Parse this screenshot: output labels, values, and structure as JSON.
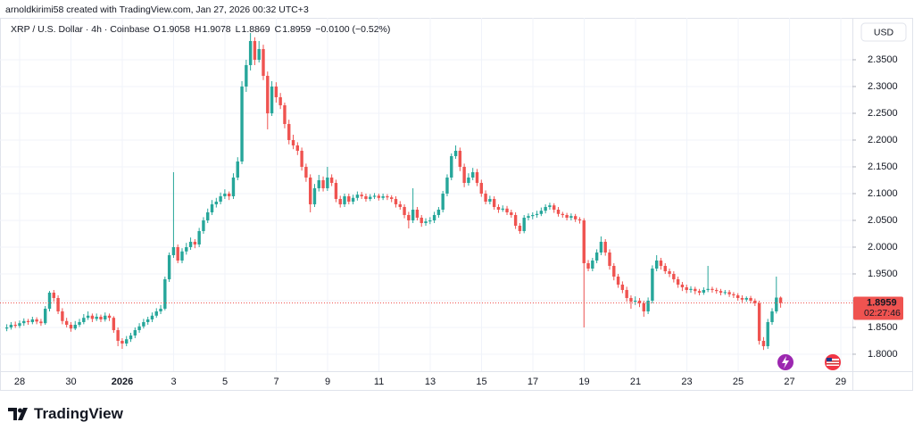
{
  "chart_data": {
    "type": "candlestick",
    "header": "arnoldkirimi58 created with TradingView.com, Jan 27, 2026 00:32 UTC+3",
    "title": "XRP / U.S. Dollar · 4h · Coinbase",
    "legend": {
      "open_label": "O",
      "open": "1.9058",
      "high_label": "H",
      "high": "1.9078",
      "low_label": "L",
      "low": "1.8869",
      "close_label": "C",
      "close": "1.8959",
      "change": "−0.0100 (−0.52%)"
    },
    "currency": "USD",
    "up_color": "#26a69a",
    "down_color": "#ef5350",
    "grid": true,
    "ylim": [
      1.7333,
      2.4283
    ],
    "yticks": [
      {
        "value": 1.8,
        "label": "1.8000"
      },
      {
        "value": 1.85,
        "label": "1.8500"
      },
      {
        "value": 1.9,
        "label": "1.9000"
      },
      {
        "value": 1.95,
        "label": "1.9500"
      },
      {
        "value": 2.0,
        "label": "2.0000"
      },
      {
        "value": 2.05,
        "label": "2.0500"
      },
      {
        "value": 2.1,
        "label": "2.1000"
      },
      {
        "value": 2.15,
        "label": "2.1500"
      },
      {
        "value": 2.2,
        "label": "2.2000"
      },
      {
        "value": 2.25,
        "label": "2.2500"
      },
      {
        "value": 2.3,
        "label": "2.3000"
      },
      {
        "value": 2.35,
        "label": "2.3500"
      }
    ],
    "xlim": [
      0.235,
      33.45
    ],
    "xticks": [
      {
        "value": 1,
        "label": "28"
      },
      {
        "value": 3,
        "label": "30"
      },
      {
        "value": 5,
        "label": "2026"
      },
      {
        "value": 7,
        "label": "3"
      },
      {
        "value": 9,
        "label": "5"
      },
      {
        "value": 11,
        "label": "7"
      },
      {
        "value": 13,
        "label": "9"
      },
      {
        "value": 15,
        "label": "11"
      },
      {
        "value": 17,
        "label": "13"
      },
      {
        "value": 19,
        "label": "15"
      },
      {
        "value": 21,
        "label": "17"
      },
      {
        "value": 23,
        "label": "19"
      },
      {
        "value": 25,
        "label": "21"
      },
      {
        "value": 27,
        "label": "23"
      },
      {
        "value": 29,
        "label": "25"
      },
      {
        "value": 31,
        "label": "27"
      },
      {
        "value": 33,
        "label": "29"
      }
    ],
    "last_price": {
      "value": 1.8959,
      "label": "1.8959"
    },
    "countdown": "02:27:46",
    "brand": "TradingView",
    "candles": [
      [
        1.848,
        1.856,
        1.843,
        1.85
      ],
      [
        1.85,
        1.86,
        1.846,
        1.855
      ],
      [
        1.855,
        1.861,
        1.849,
        1.853
      ],
      [
        1.853,
        1.863,
        1.849,
        1.858
      ],
      [
        1.858,
        1.867,
        1.853,
        1.862
      ],
      [
        1.862,
        1.866,
        1.855,
        1.86
      ],
      [
        1.86,
        1.87,
        1.856,
        1.865
      ],
      [
        1.865,
        1.869,
        1.856,
        1.861
      ],
      [
        1.861,
        1.866,
        1.853,
        1.858
      ],
      [
        1.858,
        1.89,
        1.855,
        1.885
      ],
      [
        1.885,
        1.918,
        1.88,
        1.915
      ],
      [
        1.915,
        1.92,
        1.898,
        1.905
      ],
      [
        1.905,
        1.91,
        1.875,
        1.88
      ],
      [
        1.88,
        1.886,
        1.856,
        1.862
      ],
      [
        1.862,
        1.868,
        1.85,
        1.855
      ],
      [
        1.855,
        1.86,
        1.842,
        1.848
      ],
      [
        1.848,
        1.862,
        1.845,
        1.855
      ],
      [
        1.855,
        1.866,
        1.851,
        1.86
      ],
      [
        1.86,
        1.875,
        1.856,
        1.868
      ],
      [
        1.868,
        1.88,
        1.864,
        1.872
      ],
      [
        1.872,
        1.876,
        1.86,
        1.866
      ],
      [
        1.866,
        1.876,
        1.862,
        1.87
      ],
      [
        1.87,
        1.874,
        1.86,
        1.865
      ],
      [
        1.865,
        1.878,
        1.861,
        1.872
      ],
      [
        1.872,
        1.876,
        1.862,
        1.868
      ],
      [
        1.868,
        1.871,
        1.84,
        1.845
      ],
      [
        1.845,
        1.85,
        1.815,
        1.825
      ],
      [
        1.825,
        1.83,
        1.81,
        1.82
      ],
      [
        1.82,
        1.834,
        1.815,
        1.828
      ],
      [
        1.828,
        1.84,
        1.823,
        1.835
      ],
      [
        1.835,
        1.85,
        1.83,
        1.845
      ],
      [
        1.845,
        1.858,
        1.84,
        1.852
      ],
      [
        1.852,
        1.866,
        1.848,
        1.86
      ],
      [
        1.86,
        1.87,
        1.855,
        1.865
      ],
      [
        1.865,
        1.878,
        1.86,
        1.872
      ],
      [
        1.872,
        1.886,
        1.868,
        1.88
      ],
      [
        1.88,
        1.892,
        1.875,
        1.885
      ],
      [
        1.885,
        1.945,
        1.882,
        1.94
      ],
      [
        1.94,
        1.99,
        1.935,
        1.985
      ],
      [
        1.985,
        2.14,
        1.98,
        2.0
      ],
      [
        2.0,
        2.005,
        1.97,
        1.975
      ],
      [
        1.975,
        1.998,
        1.97,
        1.992
      ],
      [
        1.992,
        2.008,
        1.986,
        2.0
      ],
      [
        2.0,
        2.018,
        1.995,
        2.01
      ],
      [
        2.01,
        2.015,
        1.998,
        2.005
      ],
      [
        2.005,
        2.036,
        2.0,
        2.03
      ],
      [
        2.03,
        2.056,
        2.025,
        2.05
      ],
      [
        2.05,
        2.072,
        2.045,
        2.065
      ],
      [
        2.065,
        2.088,
        2.06,
        2.08
      ],
      [
        2.08,
        2.092,
        2.074,
        2.085
      ],
      [
        2.085,
        2.102,
        2.08,
        2.095
      ],
      [
        2.095,
        2.108,
        2.09,
        2.1
      ],
      [
        2.1,
        2.104,
        2.088,
        2.095
      ],
      [
        2.095,
        2.138,
        2.09,
        2.13
      ],
      [
        2.13,
        2.168,
        2.125,
        2.16
      ],
      [
        2.16,
        2.31,
        2.155,
        2.3
      ],
      [
        2.3,
        2.35,
        2.29,
        2.34
      ],
      [
        2.34,
        2.4,
        2.33,
        2.385
      ],
      [
        2.385,
        2.392,
        2.34,
        2.35
      ],
      [
        2.35,
        2.385,
        2.345,
        2.37
      ],
      [
        2.37,
        2.378,
        2.312,
        2.32
      ],
      [
        2.32,
        2.328,
        2.22,
        2.25
      ],
      [
        2.25,
        2.31,
        2.245,
        2.3
      ],
      [
        2.3,
        2.308,
        2.27,
        2.28
      ],
      [
        2.28,
        2.288,
        2.258,
        2.265
      ],
      [
        2.265,
        2.27,
        2.222,
        2.23
      ],
      [
        2.23,
        2.238,
        2.192,
        2.2
      ],
      [
        2.2,
        2.21,
        2.183,
        2.19
      ],
      [
        2.19,
        2.196,
        2.172,
        2.18
      ],
      [
        2.18,
        2.186,
        2.143,
        2.15
      ],
      [
        2.15,
        2.156,
        2.122,
        2.13
      ],
      [
        2.13,
        2.136,
        2.065,
        2.08
      ],
      [
        2.08,
        2.118,
        2.075,
        2.11
      ],
      [
        2.11,
        2.135,
        2.104,
        2.125
      ],
      [
        2.125,
        2.132,
        2.104,
        2.11
      ],
      [
        2.11,
        2.15,
        2.105,
        2.13
      ],
      [
        2.13,
        2.136,
        2.114,
        2.12
      ],
      [
        2.12,
        2.126,
        2.084,
        2.09
      ],
      [
        2.09,
        2.096,
        2.074,
        2.08
      ],
      [
        2.08,
        2.1,
        2.075,
        2.095
      ],
      [
        2.095,
        2.1,
        2.08,
        2.085
      ],
      [
        2.085,
        2.098,
        2.08,
        2.092
      ],
      [
        2.092,
        2.104,
        2.087,
        2.098
      ],
      [
        2.098,
        2.103,
        2.09,
        2.095
      ],
      [
        2.095,
        2.1,
        2.085,
        2.09
      ],
      [
        2.09,
        2.099,
        2.086,
        2.094
      ],
      [
        2.094,
        2.101,
        2.09,
        2.096
      ],
      [
        2.096,
        2.1,
        2.087,
        2.092
      ],
      [
        2.092,
        2.1,
        2.088,
        2.095
      ],
      [
        2.095,
        2.099,
        2.088,
        2.093
      ],
      [
        2.093,
        2.097,
        2.084,
        2.09
      ],
      [
        2.09,
        2.095,
        2.074,
        2.08
      ],
      [
        2.08,
        2.086,
        2.07,
        2.075
      ],
      [
        2.075,
        2.08,
        2.054,
        2.06
      ],
      [
        2.06,
        2.066,
        2.035,
        2.05
      ],
      [
        2.05,
        2.11,
        2.045,
        2.07
      ],
      [
        2.07,
        2.075,
        2.05,
        2.055
      ],
      [
        2.055,
        2.06,
        2.038,
        2.045
      ],
      [
        2.045,
        2.054,
        2.04,
        2.048
      ],
      [
        2.048,
        2.056,
        2.043,
        2.05
      ],
      [
        2.05,
        2.066,
        2.045,
        2.06
      ],
      [
        2.06,
        2.075,
        2.055,
        2.07
      ],
      [
        2.07,
        2.105,
        2.065,
        2.1
      ],
      [
        2.1,
        2.136,
        2.095,
        2.13
      ],
      [
        2.13,
        2.175,
        2.125,
        2.17
      ],
      [
        2.17,
        2.19,
        2.165,
        2.18
      ],
      [
        2.18,
        2.186,
        2.142,
        2.15
      ],
      [
        2.15,
        2.156,
        2.112,
        2.12
      ],
      [
        2.12,
        2.138,
        2.115,
        2.13
      ],
      [
        2.13,
        2.148,
        2.125,
        2.14
      ],
      [
        2.14,
        2.146,
        2.114,
        2.12
      ],
      [
        2.12,
        2.126,
        2.094,
        2.1
      ],
      [
        2.1,
        2.106,
        2.08,
        2.085
      ],
      [
        2.085,
        2.096,
        2.08,
        2.09
      ],
      [
        2.09,
        2.095,
        2.07,
        2.075
      ],
      [
        2.075,
        2.08,
        2.064,
        2.07
      ],
      [
        2.07,
        2.078,
        2.066,
        2.072
      ],
      [
        2.072,
        2.077,
        2.06,
        2.065
      ],
      [
        2.065,
        2.07,
        2.055,
        2.06
      ],
      [
        2.06,
        2.065,
        2.034,
        2.04
      ],
      [
        2.04,
        2.045,
        2.025,
        2.03
      ],
      [
        2.03,
        2.06,
        2.026,
        2.055
      ],
      [
        2.055,
        2.063,
        2.05,
        2.058
      ],
      [
        2.058,
        2.065,
        2.052,
        2.06
      ],
      [
        2.06,
        2.068,
        2.055,
        2.062
      ],
      [
        2.062,
        2.074,
        2.058,
        2.068
      ],
      [
        2.068,
        2.08,
        2.063,
        2.075
      ],
      [
        2.075,
        2.083,
        2.07,
        2.078
      ],
      [
        2.078,
        2.082,
        2.064,
        2.07
      ],
      [
        2.07,
        2.075,
        2.057,
        2.062
      ],
      [
        2.062,
        2.066,
        2.055,
        2.06
      ],
      [
        2.06,
        2.064,
        2.05,
        2.055
      ],
      [
        2.055,
        2.063,
        2.05,
        2.058
      ],
      [
        2.058,
        2.062,
        2.047,
        2.052
      ],
      [
        2.052,
        2.056,
        2.044,
        2.05
      ],
      [
        2.05,
        2.054,
        1.85,
        1.97
      ],
      [
        1.97,
        1.976,
        1.955,
        1.96
      ],
      [
        1.96,
        1.98,
        1.955,
        1.975
      ],
      [
        1.975,
        1.996,
        1.97,
        1.99
      ],
      [
        1.99,
        2.02,
        1.985,
        2.01
      ],
      [
        2.01,
        2.015,
        1.984,
        1.99
      ],
      [
        1.99,
        1.996,
        1.958,
        1.965
      ],
      [
        1.965,
        1.97,
        1.938,
        1.945
      ],
      [
        1.945,
        1.95,
        1.924,
        1.93
      ],
      [
        1.93,
        1.936,
        1.914,
        1.92
      ],
      [
        1.92,
        1.926,
        1.898,
        1.905
      ],
      [
        1.905,
        1.91,
        1.885,
        1.898
      ],
      [
        1.898,
        1.908,
        1.892,
        1.9
      ],
      [
        1.9,
        1.905,
        1.888,
        1.895
      ],
      [
        1.895,
        1.9,
        1.87,
        1.88
      ],
      [
        1.88,
        1.906,
        1.875,
        1.9
      ],
      [
        1.9,
        1.966,
        1.895,
        1.96
      ],
      [
        1.96,
        1.985,
        1.955,
        1.975
      ],
      [
        1.975,
        1.98,
        1.958,
        1.965
      ],
      [
        1.965,
        1.97,
        1.95,
        1.955
      ],
      [
        1.955,
        1.96,
        1.944,
        1.95
      ],
      [
        1.95,
        1.955,
        1.934,
        1.94
      ],
      [
        1.94,
        1.945,
        1.924,
        1.93
      ],
      [
        1.93,
        1.935,
        1.918,
        1.925
      ],
      [
        1.925,
        1.93,
        1.914,
        1.92
      ],
      [
        1.92,
        1.927,
        1.915,
        1.922
      ],
      [
        1.922,
        1.926,
        1.912,
        1.918
      ],
      [
        1.918,
        1.922,
        1.91,
        1.915
      ],
      [
        1.915,
        1.925,
        1.911,
        1.92
      ],
      [
        1.92,
        1.965,
        1.916,
        1.922
      ],
      [
        1.922,
        1.926,
        1.915,
        1.92
      ],
      [
        1.92,
        1.924,
        1.913,
        1.918
      ],
      [
        1.918,
        1.922,
        1.91,
        1.915
      ],
      [
        1.915,
        1.92,
        1.911,
        1.916
      ],
      [
        1.916,
        1.92,
        1.907,
        1.912
      ],
      [
        1.912,
        1.916,
        1.905,
        1.91
      ],
      [
        1.91,
        1.914,
        1.9,
        1.905
      ],
      [
        1.905,
        1.91,
        1.897,
        1.902
      ],
      [
        1.902,
        1.908,
        1.898,
        1.905
      ],
      [
        1.905,
        1.909,
        1.895,
        1.9
      ],
      [
        1.9,
        1.904,
        1.89,
        1.895
      ],
      [
        1.895,
        1.9,
        1.818,
        1.825
      ],
      [
        1.825,
        1.832,
        1.808,
        1.815
      ],
      [
        1.815,
        1.866,
        1.81,
        1.86
      ],
      [
        1.86,
        1.886,
        1.855,
        1.88
      ],
      [
        1.88,
        1.945,
        1.876,
        1.9058
      ],
      [
        1.9058,
        1.9078,
        1.8869,
        1.8959
      ]
    ]
  }
}
